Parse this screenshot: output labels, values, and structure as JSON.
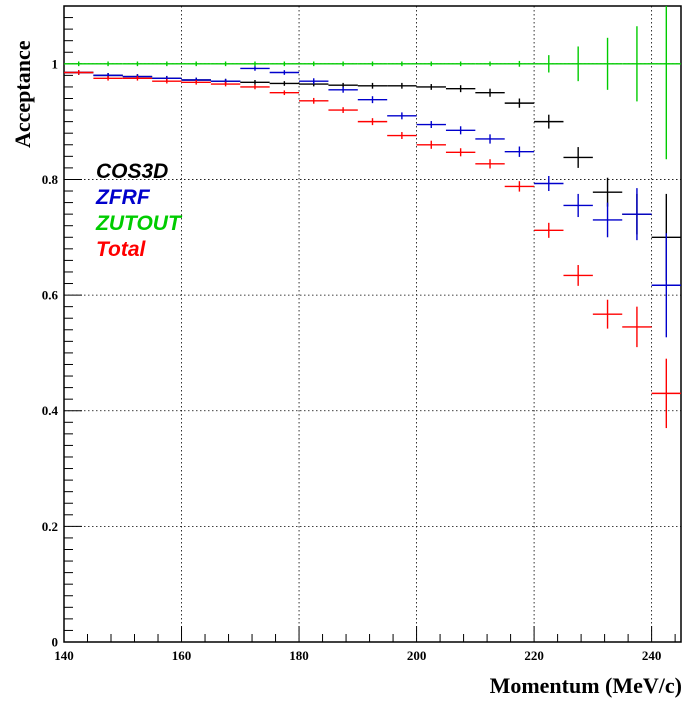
{
  "chart_data": {
    "type": "scatter",
    "xlabel": "Momentum (MeV/c)",
    "ylabel": "Acceptance",
    "xlim": [
      140,
      245
    ],
    "ylim": [
      0,
      1.1
    ],
    "x_ticks": [
      "140",
      "160",
      "180",
      "200",
      "220",
      "240"
    ],
    "y_ticks": [
      "0",
      "0.2",
      "0.4",
      "0.6",
      "0.8",
      "1"
    ],
    "grid": true,
    "legend_position": "left",
    "bin_width": 5,
    "x": [
      142.5,
      147.5,
      152.5,
      157.5,
      162.5,
      167.5,
      172.5,
      177.5,
      182.5,
      187.5,
      192.5,
      197.5,
      202.5,
      207.5,
      212.5,
      217.5,
      222.5,
      227.5,
      232.5,
      237.5,
      242.5
    ],
    "series": [
      {
        "name": "COS3D",
        "color": "#000000",
        "values": [
          0.985,
          0.98,
          0.978,
          0.975,
          0.972,
          0.97,
          0.968,
          0.966,
          0.965,
          0.963,
          0.962,
          0.962,
          0.96,
          0.957,
          0.95,
          0.932,
          0.9,
          0.838,
          0.778,
          0.74,
          0.7
        ],
        "errors": [
          0.004,
          0.004,
          0.004,
          0.004,
          0.004,
          0.004,
          0.004,
          0.004,
          0.004,
          0.004,
          0.005,
          0.005,
          0.005,
          0.006,
          0.007,
          0.008,
          0.012,
          0.018,
          0.025,
          0.035,
          0.075
        ]
      },
      {
        "name": "ZFRF",
        "color": "#0000cc",
        "values": [
          0.985,
          0.98,
          0.978,
          0.975,
          0.972,
          0.97,
          0.992,
          0.985,
          0.97,
          0.955,
          0.938,
          0.91,
          0.895,
          0.885,
          0.87,
          0.848,
          0.793,
          0.755,
          0.73,
          0.74,
          0.617
        ],
        "errors": [
          0.004,
          0.004,
          0.004,
          0.004,
          0.004,
          0.004,
          0.004,
          0.004,
          0.005,
          0.005,
          0.006,
          0.006,
          0.006,
          0.007,
          0.008,
          0.009,
          0.013,
          0.02,
          0.03,
          0.045,
          0.09
        ]
      },
      {
        "name": "ZUTOUT",
        "color": "#00cc00",
        "values": [
          1.0,
          1.0,
          1.0,
          1.0,
          1.0,
          1.0,
          1.0,
          1.0,
          1.0,
          1.0,
          1.0,
          1.0,
          1.0,
          1.0,
          1.0,
          1.0,
          1.0,
          1.0,
          1.0,
          1.0,
          1.0
        ],
        "errors": [
          0.004,
          0.004,
          0.004,
          0.004,
          0.004,
          0.004,
          0.004,
          0.004,
          0.004,
          0.004,
          0.004,
          0.004,
          0.004,
          0.004,
          0.004,
          0.005,
          0.015,
          0.03,
          0.045,
          0.065,
          0.165
        ]
      },
      {
        "name": "Total",
        "color": "#ff0000",
        "values": [
          0.985,
          0.975,
          0.975,
          0.97,
          0.968,
          0.965,
          0.96,
          0.95,
          0.936,
          0.92,
          0.9,
          0.876,
          0.86,
          0.847,
          0.827,
          0.788,
          0.712,
          0.634,
          0.567,
          0.545,
          0.43
        ],
        "errors": [
          0.004,
          0.004,
          0.004,
          0.004,
          0.004,
          0.004,
          0.004,
          0.004,
          0.005,
          0.005,
          0.006,
          0.006,
          0.007,
          0.007,
          0.008,
          0.009,
          0.013,
          0.018,
          0.025,
          0.035,
          0.06
        ]
      }
    ],
    "legend": [
      {
        "label": "COS3D",
        "color": "#000000"
      },
      {
        "label": "ZFRF",
        "color": "#0000cc"
      },
      {
        "label": "ZUTOUT",
        "color": "#00cc00"
      },
      {
        "label": "Total",
        "color": "#ff0000"
      }
    ]
  }
}
